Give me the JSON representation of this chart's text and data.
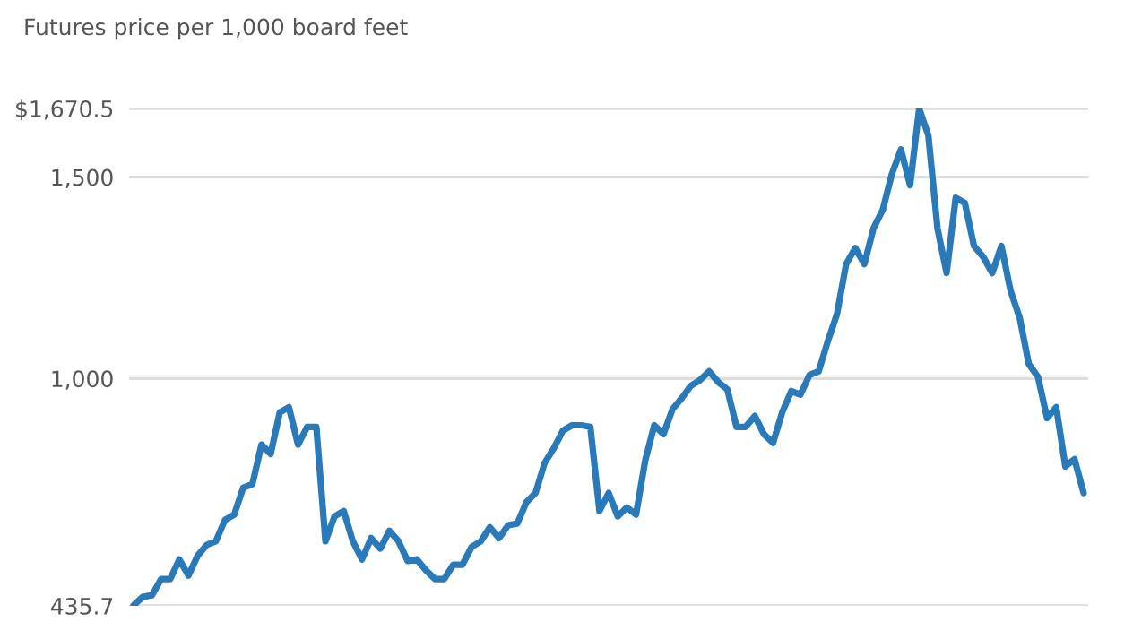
{
  "chart_data": {
    "type": "line",
    "title": "Futures price per 1,000 board feet",
    "categories": [
      null,
      null,
      null,
      null,
      null,
      null,
      null,
      null,
      null,
      null,
      null,
      null,
      null,
      null,
      null,
      null,
      null,
      null,
      null,
      null,
      null,
      null,
      null,
      null,
      null,
      null,
      null,
      null,
      null,
      null,
      null,
      null,
      null,
      null,
      null,
      null,
      null,
      null,
      null,
      null,
      null,
      null,
      null,
      null,
      null,
      null,
      null,
      null,
      null,
      null,
      null,
      null,
      null,
      null,
      null,
      null,
      null,
      null,
      null,
      null,
      null,
      null,
      null,
      null,
      null,
      null,
      null,
      null,
      null,
      null,
      null,
      null,
      null,
      null,
      null,
      null,
      null,
      null,
      null,
      null,
      null,
      null,
      null,
      null,
      null,
      null,
      null,
      null,
      null,
      null,
      null,
      null,
      null,
      null,
      null,
      null,
      null,
      null,
      null,
      null,
      null,
      null,
      null,
      null,
      null
    ],
    "series": [
      {
        "color": "#2a7ab9",
        "values": [
          437,
          458,
          462,
          502,
          502,
          551,
          511,
          560,
          587,
          596,
          649,
          662,
          729,
          738,
          836,
          813,
          916,
          929,
          836,
          880,
          880,
          596,
          658,
          671,
          596,
          551,
          604,
          578,
          622,
          596,
          547,
          551,
          524,
          502,
          502,
          538,
          538,
          582,
          596,
          631,
          604,
          636,
          640,
          693,
          716,
          791,
          827,
          871,
          884,
          884,
          880,
          671,
          716,
          658,
          680,
          662,
          796,
          884,
          862,
          924,
          951,
          982,
          996,
          1018,
          991,
          973,
          880,
          880,
          907,
          862,
          840,
          916,
          969,
          960,
          1009,
          1018,
          1093,
          1160,
          1284,
          1324,
          1284,
          1373,
          1418,
          1507,
          1569,
          1480,
          1670,
          1604,
          1373,
          1262,
          1449,
          1436,
          1329,
          1302,
          1262,
          1329,
          1218,
          1151,
          1036,
          1004,
          902,
          929,
          782,
          800,
          716
        ]
      }
    ],
    "ylim": [
      435.7,
      1670.5
    ],
    "yticks": [
      {
        "value": 435.7,
        "label": "435.7"
      },
      {
        "value": 1000,
        "label": "1,000"
      },
      {
        "value": 1500,
        "label": "1,500"
      },
      {
        "value": 1670.5,
        "label": "$1,670.5"
      }
    ],
    "grid": "y"
  }
}
